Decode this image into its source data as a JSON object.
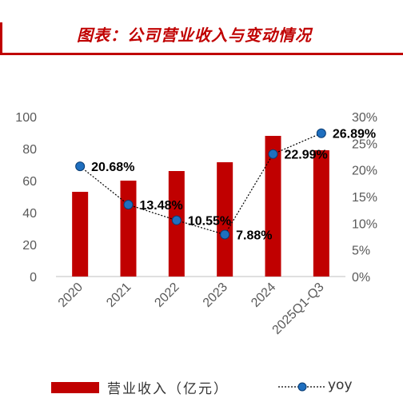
{
  "header": {
    "title": "图表：公司营业收入与变动情况"
  },
  "colors": {
    "accent": "#c00000",
    "bar": "#c00000",
    "marker": "#1f6fbf",
    "grid": "#d9d9d9",
    "axis_text": "#595959"
  },
  "legend": {
    "bar_label": "营业收入（亿元）",
    "line_label": "yoy"
  },
  "chart_data": {
    "type": "bar",
    "categories": [
      "2020",
      "2021",
      "2022",
      "2023",
      "2024",
      "2025Q1-Q3"
    ],
    "series": [
      {
        "name": "营业收入（亿元）",
        "type": "bar",
        "axis": "left",
        "values": [
          53,
          60,
          66,
          71.5,
          88,
          79
        ]
      },
      {
        "name": "yoy",
        "type": "line",
        "axis": "right",
        "values": [
          20.68,
          13.48,
          10.55,
          7.88,
          22.99,
          26.89
        ]
      }
    ],
    "data_labels": [
      "20.68%",
      "13.48%",
      "10.55%",
      "7.88%",
      "22.99%",
      "26.89%"
    ],
    "ylim": [
      0,
      100
    ],
    "y_ticks": [
      "0",
      "20",
      "40",
      "60",
      "80",
      "100"
    ],
    "y2lim": [
      0,
      30
    ],
    "y2_ticks": [
      "0%",
      "5%",
      "10%",
      "15%",
      "20%",
      "25%",
      "30%"
    ],
    "legend_position": "bottom",
    "grid": false
  }
}
